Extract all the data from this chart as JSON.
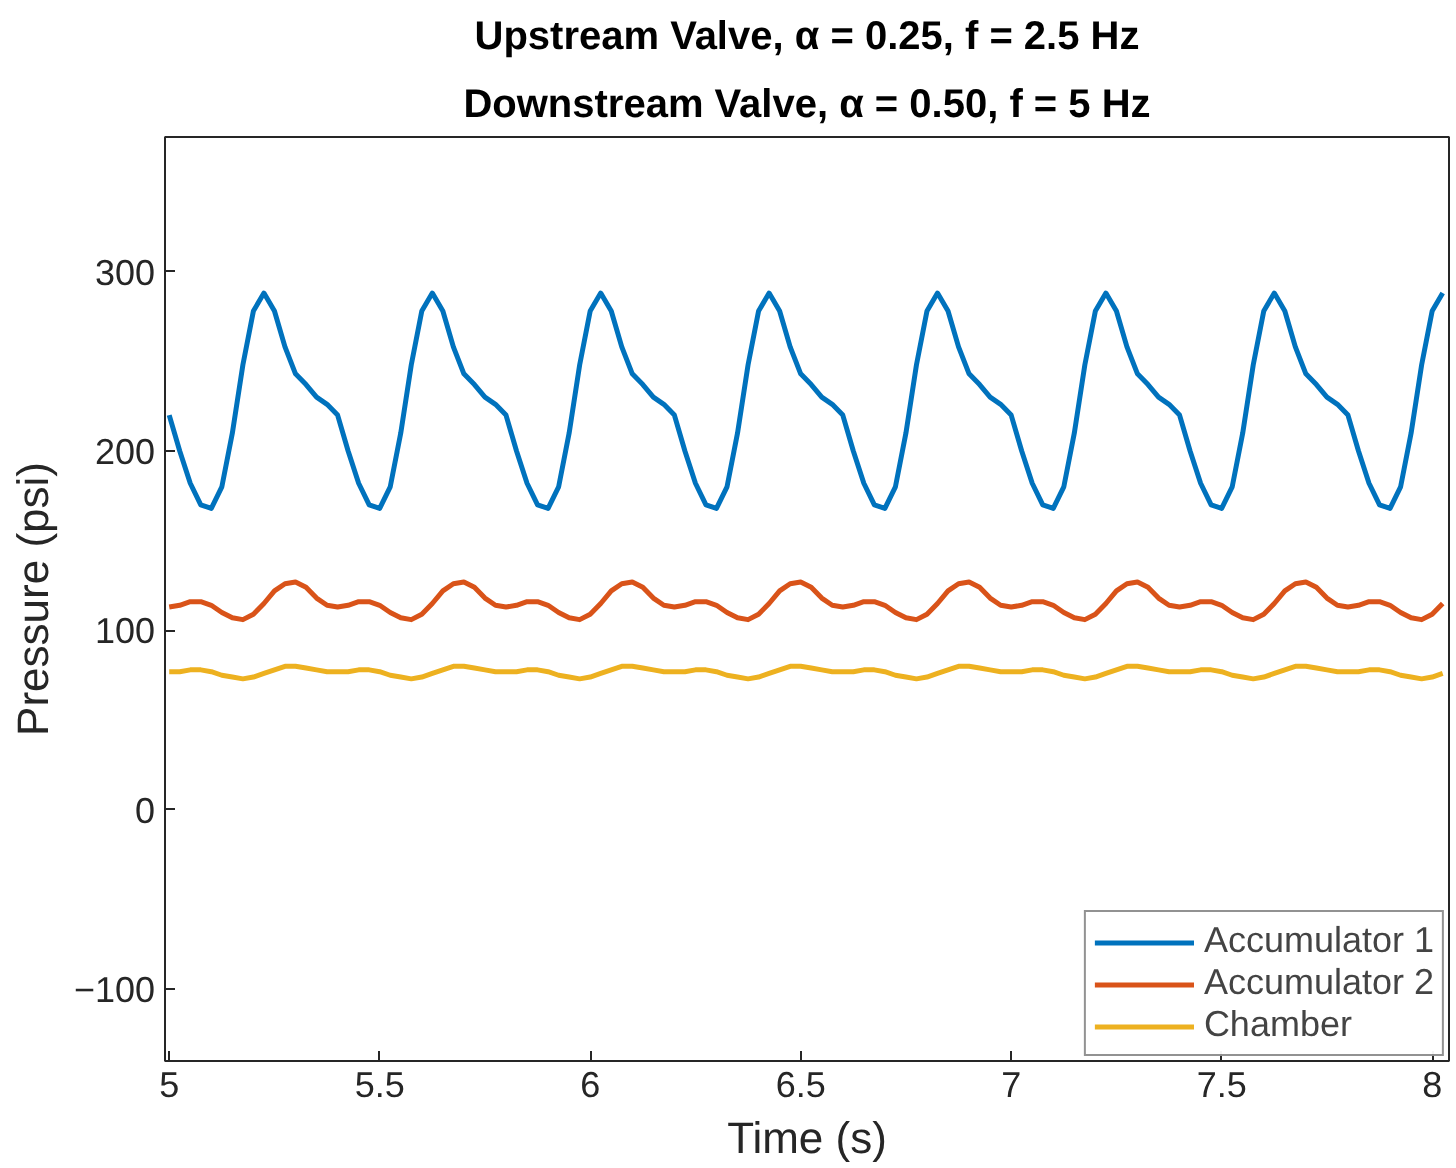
{
  "chart_data": {
    "type": "line",
    "title": "Upstream Valve, α = 0.25, f = 2.5 Hz",
    "subtitle": "Downstream Valve, α = 0.50, f = 5 Hz",
    "xlabel": "Time (s)",
    "ylabel": "Pressure (psi)",
    "x": [
      5,
      5.025,
      5.05,
      5.075,
      5.1,
      5.125,
      5.15,
      5.175,
      5.2,
      5.225,
      5.25,
      5.275,
      5.3,
      5.325,
      5.35,
      5.375,
      5.4,
      5.425,
      5.45,
      5.475,
      5.5,
      5.525,
      5.55,
      5.575,
      5.6,
      5.625,
      5.65,
      5.675,
      5.7,
      5.725,
      5.75,
      5.775,
      5.8,
      5.825,
      5.85,
      5.875,
      5.9,
      5.925,
      5.95,
      5.975,
      6,
      6.025,
      6.05,
      6.075,
      6.1,
      6.125,
      6.15,
      6.175,
      6.2,
      6.225,
      6.25,
      6.275,
      6.3,
      6.325,
      6.35,
      6.375,
      6.4,
      6.425,
      6.45,
      6.475,
      6.5,
      6.525,
      6.55,
      6.575,
      6.6,
      6.625,
      6.65,
      6.675,
      6.7,
      6.725,
      6.75,
      6.775,
      6.8,
      6.825,
      6.85,
      6.875,
      6.9,
      6.925,
      6.95,
      6.975,
      7,
      7.025,
      7.05,
      7.075,
      7.1,
      7.125,
      7.15,
      7.175,
      7.2,
      7.225,
      7.25,
      7.275,
      7.3,
      7.325,
      7.35,
      7.375,
      7.4,
      7.425,
      7.45,
      7.475,
      7.5,
      7.525,
      7.55,
      7.575,
      7.6,
      7.625,
      7.65,
      7.675,
      7.7,
      7.725,
      7.75,
      7.775,
      7.8,
      7.825,
      7.85,
      7.875,
      7.9,
      7.925,
      7.95,
      7.975,
      8,
      8.025
    ],
    "series": [
      {
        "name": "Accumulator 1",
        "color": "#0072bd",
        "values": [
          220,
          200,
          182,
          170,
          168,
          180,
          210,
          248,
          278,
          288,
          278,
          258,
          243,
          237,
          230,
          226,
          220,
          200,
          182,
          170,
          168,
          180,
          210,
          248,
          278,
          288,
          278,
          258,
          243,
          237,
          230,
          226,
          220,
          200,
          182,
          170,
          168,
          180,
          210,
          248,
          278,
          288,
          278,
          258,
          243,
          237,
          230,
          226,
          220,
          200,
          182,
          170,
          168,
          180,
          210,
          248,
          278,
          288,
          278,
          258,
          243,
          237,
          230,
          226,
          220,
          200,
          182,
          170,
          168,
          180,
          210,
          248,
          278,
          288,
          278,
          258,
          243,
          237,
          230,
          226,
          220,
          200,
          182,
          170,
          168,
          180,
          210,
          248,
          278,
          288,
          278,
          258,
          243,
          237,
          230,
          226,
          220,
          200,
          182,
          170,
          168,
          180,
          210,
          248,
          278,
          288,
          278,
          258,
          243,
          237,
          230,
          226,
          220,
          200,
          182,
          170,
          168,
          180,
          210,
          248,
          278,
          288
        ]
      },
      {
        "name": "Accumulator 2",
        "color": "#d95319",
        "values": [
          113,
          114,
          116,
          116,
          114,
          110,
          107,
          106,
          109,
          115,
          122,
          126,
          127,
          124,
          118,
          114,
          113,
          114,
          116,
          116,
          114,
          110,
          107,
          106,
          109,
          115,
          122,
          126,
          127,
          124,
          118,
          114,
          113,
          114,
          116,
          116,
          114,
          110,
          107,
          106,
          109,
          115,
          122,
          126,
          127,
          124,
          118,
          114,
          113,
          114,
          116,
          116,
          114,
          110,
          107,
          106,
          109,
          115,
          122,
          126,
          127,
          124,
          118,
          114,
          113,
          114,
          116,
          116,
          114,
          110,
          107,
          106,
          109,
          115,
          122,
          126,
          127,
          124,
          118,
          114,
          113,
          114,
          116,
          116,
          114,
          110,
          107,
          106,
          109,
          115,
          122,
          126,
          127,
          124,
          118,
          114,
          113,
          114,
          116,
          116,
          114,
          110,
          107,
          106,
          109,
          115,
          122,
          126,
          127,
          124,
          118,
          114,
          113,
          114,
          116,
          116,
          114,
          110,
          107,
          106,
          109,
          115
        ]
      },
      {
        "name": "Chamber",
        "color": "#edb120",
        "values": [
          77,
          77,
          78,
          78,
          77,
          75,
          74,
          73,
          74,
          76,
          78,
          80,
          80,
          79,
          78,
          77,
          77,
          77,
          78,
          78,
          77,
          75,
          74,
          73,
          74,
          76,
          78,
          80,
          80,
          79,
          78,
          77,
          77,
          77,
          78,
          78,
          77,
          75,
          74,
          73,
          74,
          76,
          78,
          80,
          80,
          79,
          78,
          77,
          77,
          77,
          78,
          78,
          77,
          75,
          74,
          73,
          74,
          76,
          78,
          80,
          80,
          79,
          78,
          77,
          77,
          77,
          78,
          78,
          77,
          75,
          74,
          73,
          74,
          76,
          78,
          80,
          80,
          79,
          78,
          77,
          77,
          77,
          78,
          78,
          77,
          75,
          74,
          73,
          74,
          76,
          78,
          80,
          80,
          79,
          78,
          77,
          77,
          77,
          78,
          78,
          77,
          75,
          74,
          73,
          74,
          76,
          78,
          80,
          80,
          79,
          78,
          77,
          77,
          77,
          78,
          78,
          77,
          75,
          74,
          73,
          74,
          76
        ]
      }
    ],
    "xlim": [
      4.99,
      8.04
    ],
    "ylim": [
      -140,
      375
    ],
    "xticks": [
      5,
      5.5,
      6,
      6.5,
      7,
      7.5,
      8
    ],
    "yticks": [
      -100,
      0,
      100,
      200,
      300
    ],
    "grid": false,
    "legend": "bottom right",
    "line_style": "solid"
  }
}
